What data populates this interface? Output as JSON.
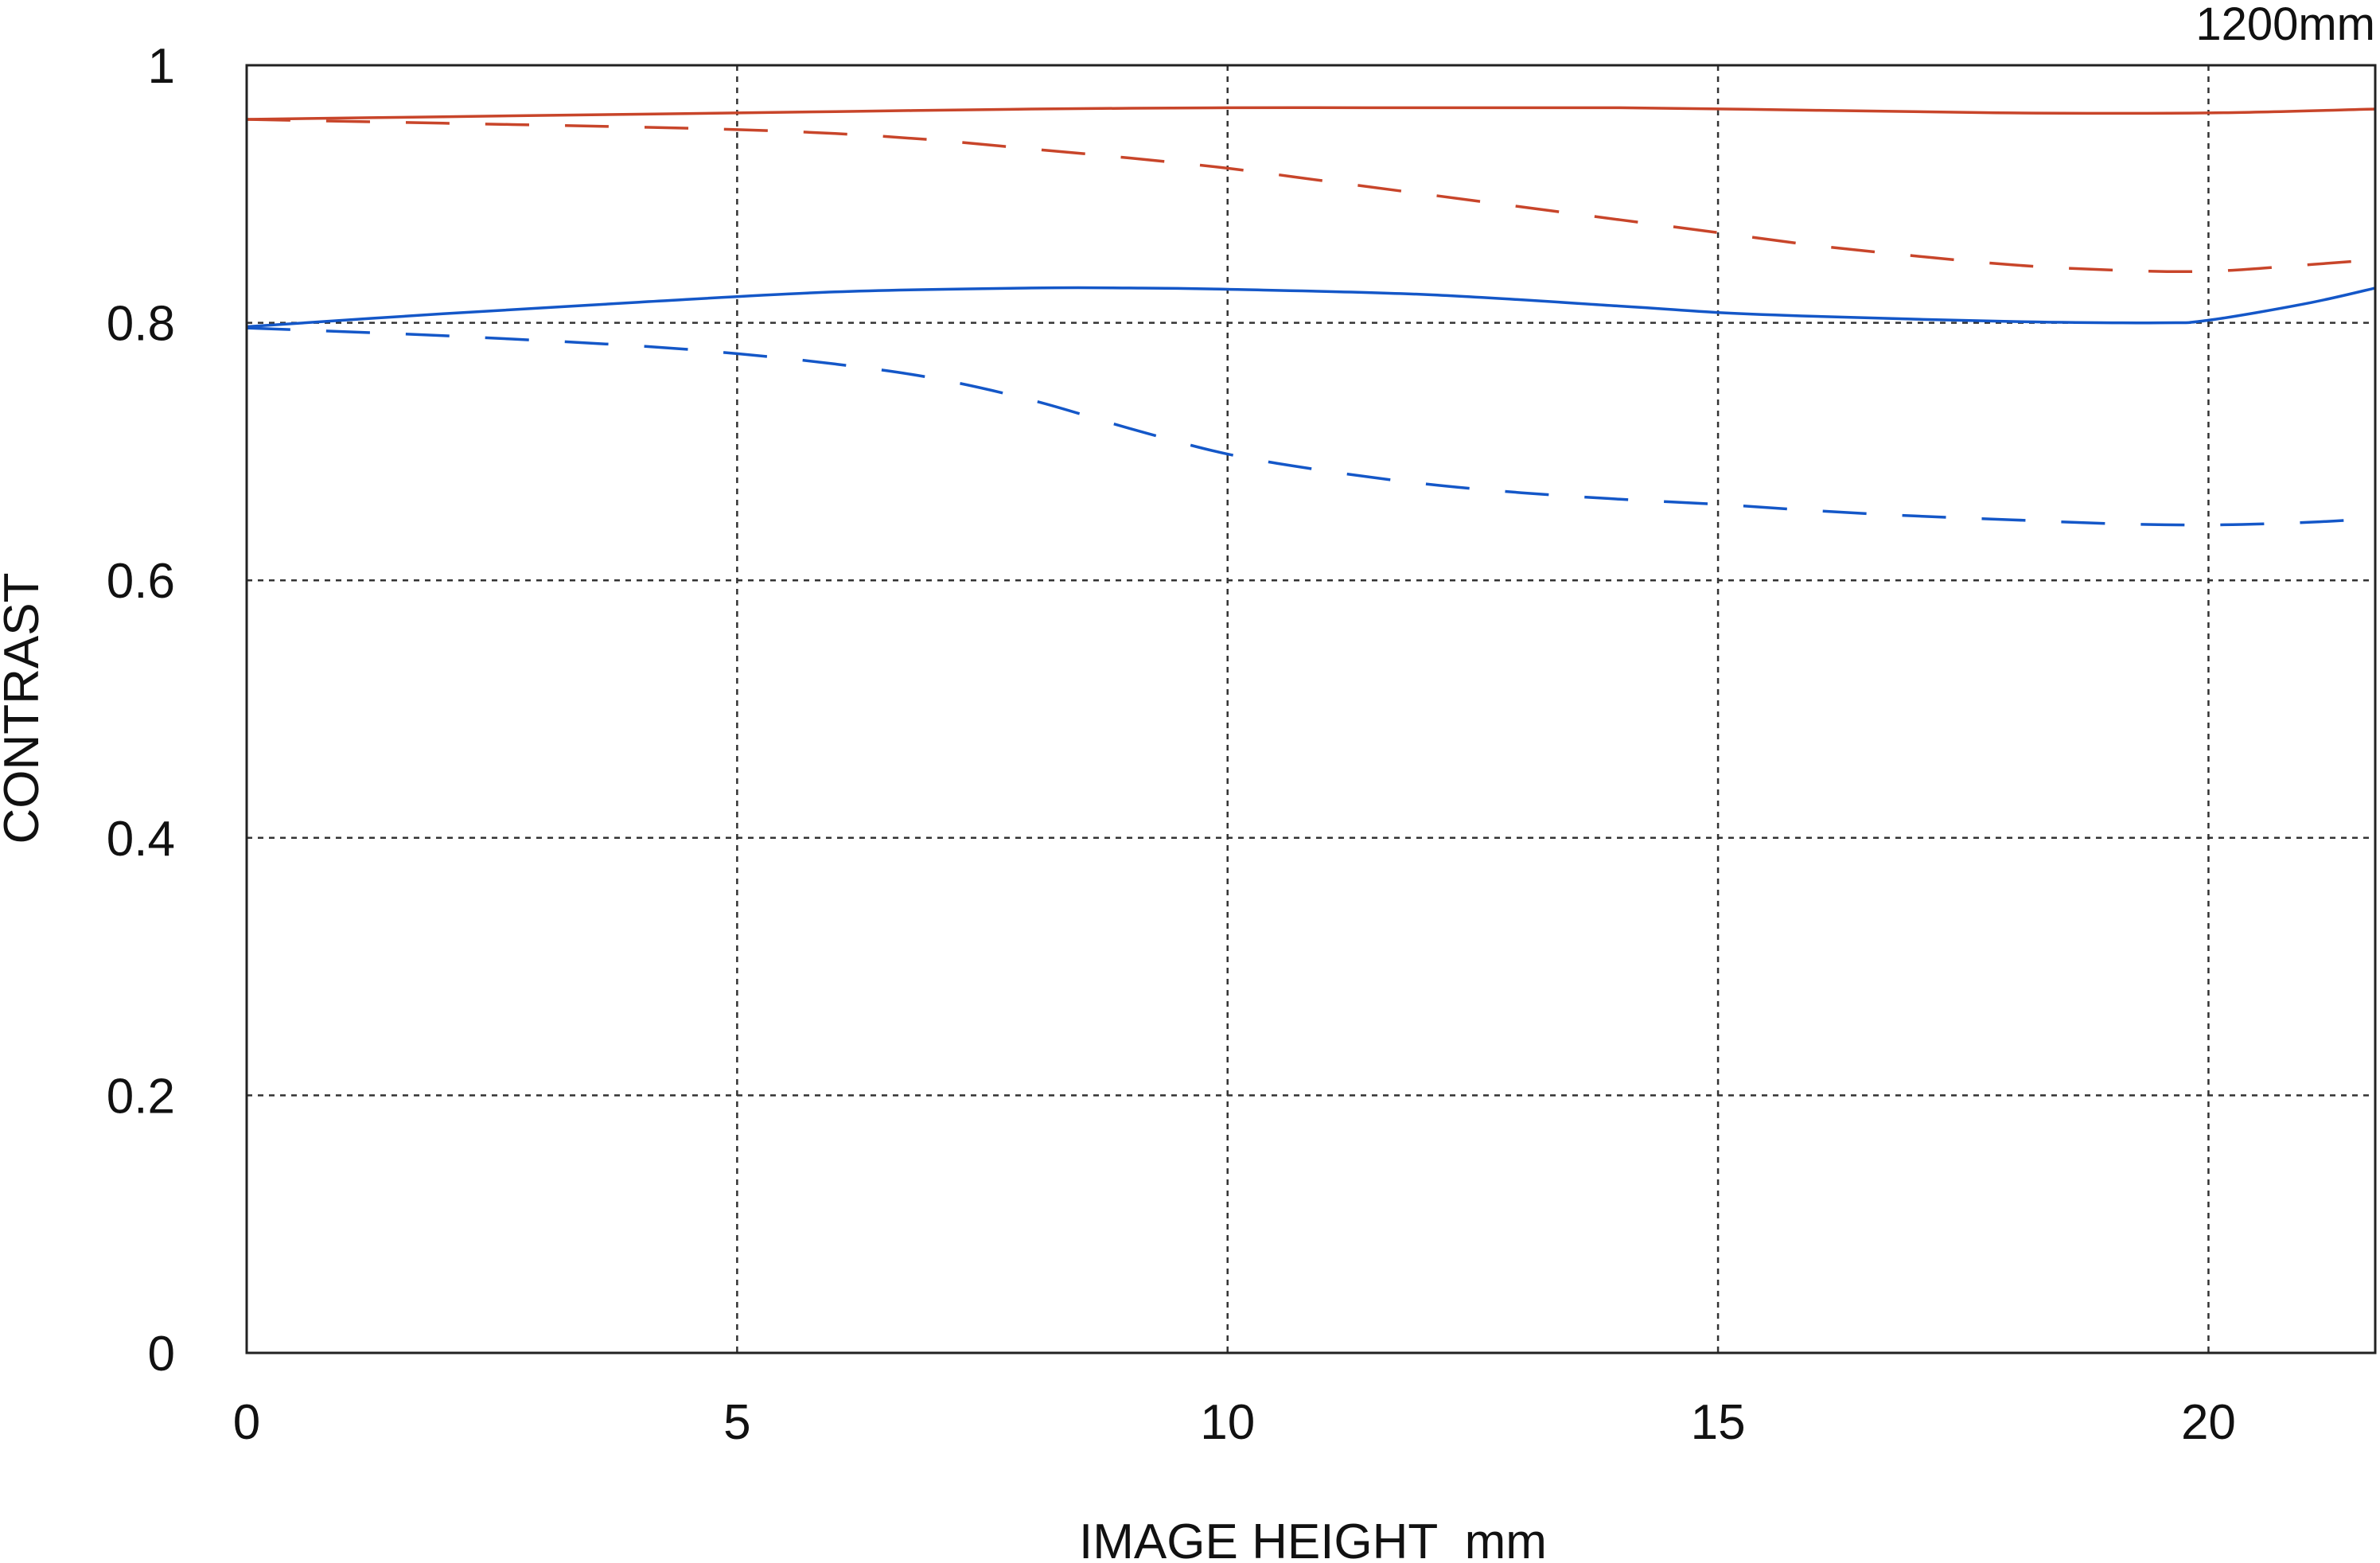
{
  "chart_data": {
    "type": "line",
    "corner_label": "1200mm",
    "xlabel": "IMAGE HEIGHT  mm",
    "ylabel": "CONTRAST",
    "xlim": [
      0,
      21.7
    ],
    "ylim": [
      0,
      1
    ],
    "xticks": [
      0,
      5,
      10,
      15,
      20
    ],
    "xtick_labels": [
      "0",
      "5",
      "10",
      "15",
      "20"
    ],
    "yticks": [
      0,
      0.2,
      0.4,
      0.6,
      0.8,
      1
    ],
    "ytick_labels": [
      "0",
      "0.2",
      "0.4",
      "0.6",
      "0.8",
      "1"
    ],
    "grid": true,
    "colors": {
      "red": "#c8452a",
      "blue": "#1457c8"
    },
    "series": [
      {
        "color": "#c8452a",
        "style": "solid",
        "x": [
          0,
          2,
          4,
          6,
          8,
          10,
          12,
          14,
          16,
          18,
          20,
          21.7
        ],
        "y": [
          0.958,
          0.96,
          0.962,
          0.964,
          0.966,
          0.967,
          0.967,
          0.967,
          0.965,
          0.963,
          0.963,
          0.966
        ]
      },
      {
        "color": "#c8452a",
        "style": "dashed",
        "x": [
          0,
          2,
          4,
          5,
          6,
          7,
          8,
          9,
          10,
          11,
          12,
          13,
          14,
          15,
          16,
          17,
          18,
          19,
          20,
          21,
          21.7
        ],
        "y": [
          0.958,
          0.955,
          0.952,
          0.95,
          0.947,
          0.942,
          0.935,
          0.928,
          0.92,
          0.91,
          0.9,
          0.89,
          0.88,
          0.87,
          0.86,
          0.852,
          0.845,
          0.841,
          0.84,
          0.845,
          0.849
        ]
      },
      {
        "color": "#1457c8",
        "style": "solid",
        "x": [
          0,
          2,
          4,
          6,
          8,
          9,
          10,
          12,
          14,
          15,
          16,
          18,
          19.5,
          20,
          21,
          21.7
        ],
        "y": [
          0.797,
          0.807,
          0.816,
          0.824,
          0.827,
          0.827,
          0.826,
          0.822,
          0.813,
          0.808,
          0.805,
          0.801,
          0.8,
          0.802,
          0.815,
          0.827
        ]
      },
      {
        "color": "#1457c8",
        "style": "dashed",
        "x": [
          0,
          2,
          4,
          5,
          6,
          7,
          8,
          9,
          10,
          11,
          12,
          13,
          14,
          15,
          16,
          17,
          18,
          19,
          20,
          21,
          21.7
        ],
        "y": [
          0.796,
          0.79,
          0.782,
          0.776,
          0.768,
          0.757,
          0.74,
          0.718,
          0.698,
          0.685,
          0.675,
          0.668,
          0.663,
          0.659,
          0.654,
          0.65,
          0.647,
          0.644,
          0.643,
          0.645,
          0.648
        ]
      }
    ]
  }
}
